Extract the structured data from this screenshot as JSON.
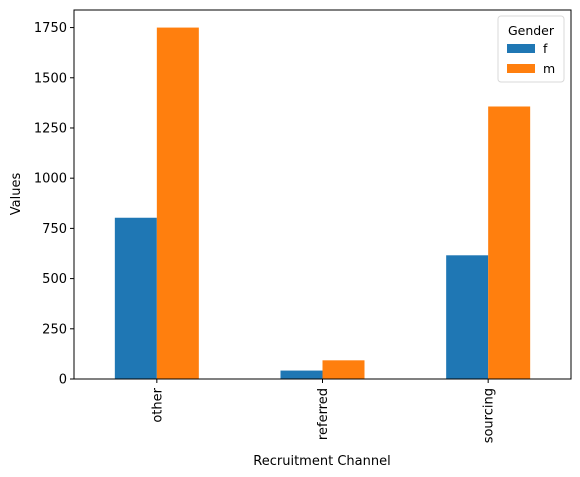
{
  "chart_data": {
    "type": "bar",
    "title": "",
    "xlabel": "Recruitment Channel",
    "ylabel": "Values",
    "categories": [
      "other",
      "referred",
      "sourcing"
    ],
    "series": [
      {
        "name": "f",
        "values": [
          803,
          42,
          616
        ],
        "color": "#1f77b4"
      },
      {
        "name": "m",
        "values": [
          1750,
          93,
          1357
        ],
        "color": "#ff7f0e"
      }
    ],
    "ylim": [
      0,
      1837.5
    ],
    "yticks": [
      0,
      250,
      500,
      750,
      1000,
      1250,
      1500,
      1750
    ],
    "grid": false,
    "legend": {
      "title": "Gender",
      "position": "top-right"
    }
  }
}
